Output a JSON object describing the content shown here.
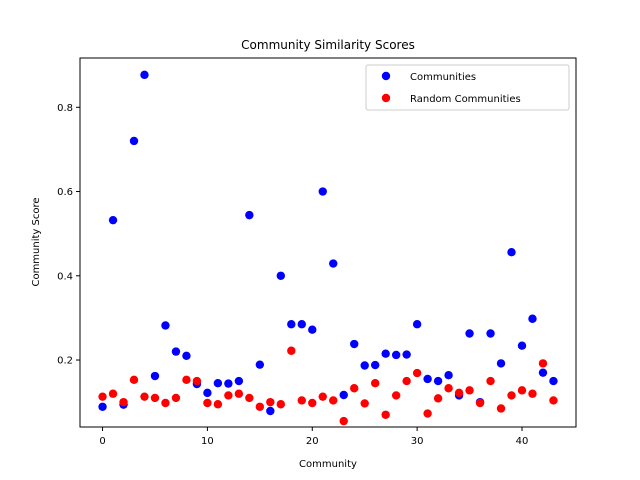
{
  "chart_data": {
    "type": "scatter",
    "title": "Community Similarity Scores",
    "xlabel": "Community",
    "ylabel": "Community Score",
    "xlim": [
      -2.15,
      45.15
    ],
    "ylim": [
      0.041,
      0.917
    ],
    "xticks": [
      0,
      10,
      20,
      30,
      40
    ],
    "yticks": [
      0.2,
      0.4,
      0.6,
      0.8
    ],
    "ytick_labels": [
      "0.2",
      "0.4",
      "0.6",
      "0.8"
    ],
    "grid": false,
    "legend_position": "top-right",
    "series": [
      {
        "name": "Communities",
        "color": "#0000ff",
        "x": [
          0,
          1,
          2,
          3,
          4,
          5,
          6,
          7,
          8,
          9,
          10,
          11,
          12,
          13,
          14,
          15,
          16,
          17,
          18,
          19,
          20,
          21,
          22,
          23,
          24,
          25,
          26,
          27,
          28,
          29,
          30,
          31,
          32,
          33,
          34,
          35,
          36,
          37,
          38,
          39,
          40,
          41,
          42,
          43
        ],
        "y": [
          0.089,
          0.532,
          0.094,
          0.72,
          0.877,
          0.162,
          0.282,
          0.22,
          0.21,
          0.143,
          0.122,
          0.145,
          0.144,
          0.15,
          0.544,
          0.189,
          0.079,
          0.4,
          0.285,
          0.285,
          0.272,
          0.6,
          0.429,
          0.117,
          0.238,
          0.187,
          0.188,
          0.215,
          0.212,
          0.213,
          0.285,
          0.155,
          0.15,
          0.164,
          0.116,
          0.263,
          0.1,
          0.263,
          0.192,
          0.456,
          0.234,
          0.298,
          0.17,
          0.15
        ]
      },
      {
        "name": "Random Communities",
        "color": "#ff0000",
        "x": [
          0,
          1,
          2,
          3,
          4,
          5,
          6,
          7,
          8,
          9,
          10,
          11,
          12,
          13,
          14,
          15,
          16,
          17,
          18,
          19,
          20,
          21,
          22,
          23,
          24,
          25,
          26,
          27,
          28,
          29,
          30,
          31,
          32,
          33,
          34,
          35,
          36,
          37,
          38,
          39,
          40,
          41,
          42,
          43
        ],
        "y": [
          0.113,
          0.12,
          0.1,
          0.153,
          0.113,
          0.11,
          0.098,
          0.11,
          0.153,
          0.15,
          0.098,
          0.095,
          0.116,
          0.12,
          0.11,
          0.089,
          0.1,
          0.095,
          0.222,
          0.104,
          0.098,
          0.113,
          0.104,
          0.055,
          0.133,
          0.097,
          0.145,
          0.07,
          0.116,
          0.15,
          0.169,
          0.073,
          0.109,
          0.133,
          0.122,
          0.128,
          0.098,
          0.15,
          0.085,
          0.116,
          0.128,
          0.12,
          0.192,
          0.104
        ]
      }
    ]
  }
}
